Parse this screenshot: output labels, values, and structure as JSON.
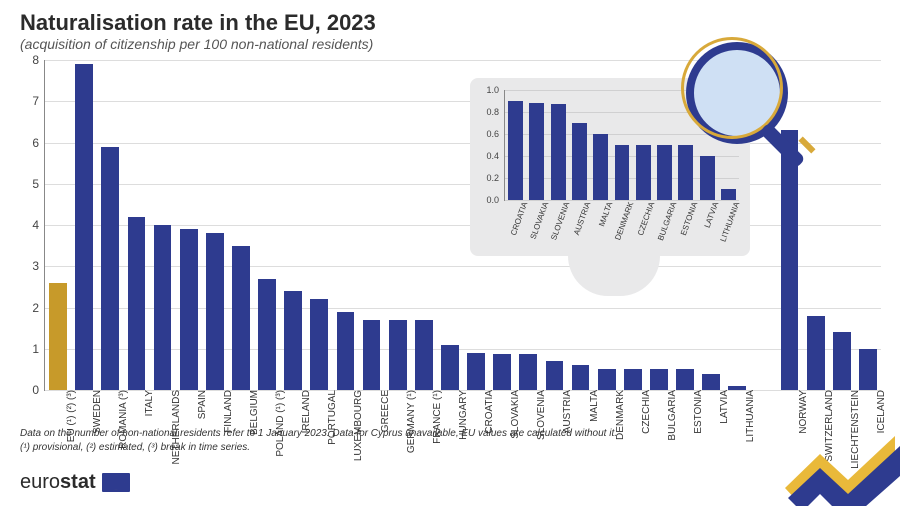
{
  "title": "Naturalisation rate in the EU, 2023",
  "subtitle": "(acquisition of citizenship per 100 non-national residents)",
  "footnotes": [
    "Data on the number of non-national residents refer to 1 January 2023. Data for Cyprus unavailable, EU values are calculated without it.",
    "(¹) provisional, (²) estimated, (³) break in time series."
  ],
  "logo_text_left": "euro",
  "logo_text_right": "stat",
  "main_chart": {
    "type": "bar",
    "ylim": [
      0,
      8
    ],
    "ytick_step": 1,
    "bar_color": "#2e3b8f",
    "eu_bar_color": "#c79a2a",
    "gap_after_index": 27,
    "gap_width_bars": 1.0,
    "bar_width_ratio": 0.68,
    "grid_color": "#dddddd",
    "axis_color": "#888888",
    "label_fontsize": 10,
    "tick_fontsize": 12,
    "categories": [
      "EU (¹) (²) (³)",
      "SWEDEN",
      "ROMANIA (³)",
      "ITALY",
      "NETHERLANDS",
      "SPAIN",
      "FINLAND",
      "BELGIUM",
      "POLAND (¹) (³)",
      "IRELAND",
      "PORTUGAL",
      "LUXEMBOURG",
      "GREECE",
      "GERMANY (¹)",
      "FRANCE (¹)",
      "HUNGARY",
      "CROATIA",
      "SLOVAKIA",
      "SLOVENIA",
      "AUSTRIA",
      "MALTA",
      "DENMARK",
      "CZECHIA",
      "BULGARIA",
      "ESTONIA",
      "LATVIA",
      "LITHUANIA",
      "NORWAY",
      "SWITZERLAND",
      "LIECHTENSTEIN",
      "ICELAND"
    ],
    "values": [
      2.6,
      7.9,
      5.9,
      4.2,
      4.0,
      3.9,
      3.8,
      3.5,
      2.7,
      2.4,
      2.2,
      1.9,
      1.7,
      1.7,
      1.7,
      1.1,
      0.9,
      0.88,
      0.87,
      0.7,
      0.6,
      0.5,
      0.5,
      0.5,
      0.5,
      0.4,
      0.1,
      6.3,
      1.8,
      1.4,
      1.0
    ],
    "special_index": 0
  },
  "inset_chart": {
    "type": "bar",
    "ylim": [
      0,
      1.0
    ],
    "ytick_step": 0.2,
    "bar_color": "#2e3b8f",
    "bar_width_ratio": 0.7,
    "background_color": "#e9e9ea",
    "categories": [
      "CROATIA",
      "SLOVAKIA",
      "SLOVENIA",
      "AUSTRIA",
      "MALTA",
      "DENMARK",
      "CZECHIA",
      "BULGARIA",
      "ESTONIA",
      "LATVIA",
      "LITHUANIA"
    ],
    "values": [
      0.9,
      0.88,
      0.87,
      0.7,
      0.6,
      0.5,
      0.5,
      0.5,
      0.5,
      0.4,
      0.1
    ]
  },
  "colors": {
    "ribbon_yellow": "#e9b93a",
    "ribbon_blue": "#2e3b8f",
    "magnifier_glass": "#cfe0f4"
  }
}
